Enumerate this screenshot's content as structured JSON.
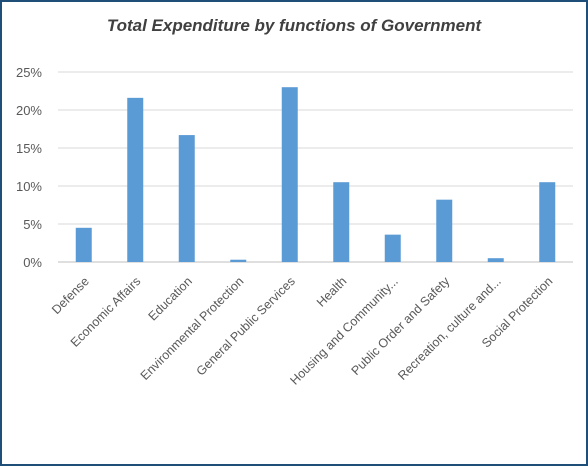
{
  "chart_data": {
    "type": "bar",
    "title": "Total Expenditure by functions of Government",
    "xlabel": "",
    "ylabel": "",
    "categories": [
      "Defense",
      "Economic Affairs",
      "Education",
      "Environmental Protection",
      "General Public Services",
      "Health",
      "Housing and Community...",
      "Public Order and Safety",
      "Recreation, culture and...",
      "Social Protection"
    ],
    "values": [
      4.5,
      21.6,
      16.7,
      0.3,
      23.0,
      10.5,
      3.6,
      8.2,
      0.5,
      10.5
    ],
    "value_unit": "%",
    "y_ticks": [
      "0%",
      "5%",
      "10%",
      "15%",
      "20%",
      "25%"
    ],
    "ylim": [
      0,
      25
    ],
    "grid": true,
    "legend": "none",
    "colors": {
      "bar": "#5b9bd5",
      "grid": "#d9d9d9",
      "frame": "#1f4e79"
    }
  }
}
